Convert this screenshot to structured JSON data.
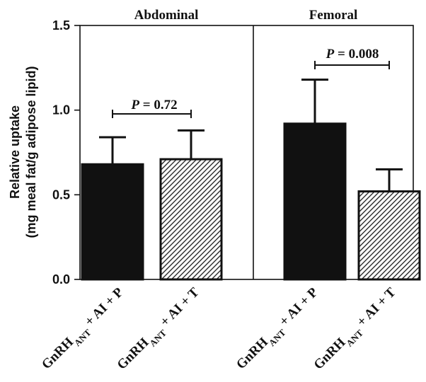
{
  "chart_data": {
    "type": "bar",
    "ylabel_line1": "Relative uptake",
    "ylabel_line2": "(mg meal fat/g adipose lipid)",
    "ylim": [
      0,
      1.5
    ],
    "yticks": [
      "0.0",
      "0.5",
      "1.0",
      "1.5"
    ],
    "grid": false,
    "panels": [
      {
        "title": "Abdominal",
        "p_label": "P",
        "p_value": " = 0.72",
        "bars": [
          {
            "label_main": "GnRH",
            "label_sub": "ANT",
            "label_rest": " + AI + P",
            "value": 0.68,
            "error": 0.16,
            "fill": "solid"
          },
          {
            "label_main": "GnRH",
            "label_sub": "ANT",
            "label_rest": " + AI + T",
            "value": 0.71,
            "error": 0.17,
            "fill": "hatched"
          }
        ]
      },
      {
        "title": "Femoral",
        "p_label": "P",
        "p_value": " = 0.008",
        "bars": [
          {
            "label_main": "GnRH",
            "label_sub": "ANT",
            "label_rest": " + AI + P",
            "value": 0.92,
            "error": 0.26,
            "fill": "solid"
          },
          {
            "label_main": "GnRH",
            "label_sub": "ANT",
            "label_rest": " + AI + T",
            "value": 0.52,
            "error": 0.13,
            "fill": "hatched"
          }
        ]
      }
    ]
  }
}
